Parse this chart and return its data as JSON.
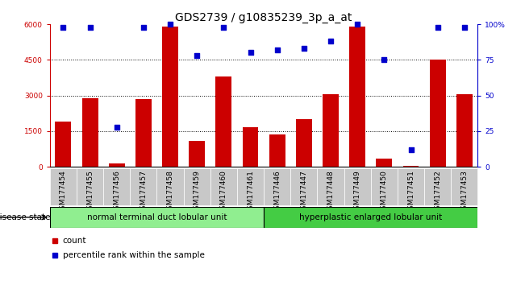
{
  "title": "GDS2739 / g10835239_3p_a_at",
  "samples": [
    "GSM177454",
    "GSM177455",
    "GSM177456",
    "GSM177457",
    "GSM177458",
    "GSM177459",
    "GSM177460",
    "GSM177461",
    "GSM177446",
    "GSM177447",
    "GSM177448",
    "GSM177449",
    "GSM177450",
    "GSM177451",
    "GSM177452",
    "GSM177453"
  ],
  "counts": [
    1900,
    2900,
    150,
    2850,
    5900,
    1100,
    3800,
    1650,
    1350,
    2000,
    3050,
    5900,
    350,
    50,
    4500,
    3050
  ],
  "percentiles": [
    98,
    98,
    28,
    98,
    100,
    78,
    98,
    80,
    82,
    83,
    88,
    100,
    75,
    12,
    98,
    98
  ],
  "group1_label": "normal terminal duct lobular unit",
  "group2_label": "hyperplastic enlarged lobular unit",
  "group1_count": 8,
  "group2_count": 8,
  "bar_color": "#cc0000",
  "dot_color": "#0000cc",
  "bar_width": 0.6,
  "ylim_left": [
    0,
    6000
  ],
  "ylim_right": [
    0,
    100
  ],
  "yticks_left": [
    0,
    1500,
    3000,
    4500,
    6000
  ],
  "yticks_right": [
    0,
    25,
    50,
    75,
    100
  ],
  "tick_label_bg": "#c8c8c8",
  "group1_bg": "#90ee90",
  "group2_bg": "#44cc44",
  "disease_state_label": "disease state",
  "legend_count_label": "count",
  "legend_pct_label": "percentile rank within the sample",
  "title_fontsize": 10,
  "tick_fontsize": 6.5,
  "legend_fontsize": 7.5
}
